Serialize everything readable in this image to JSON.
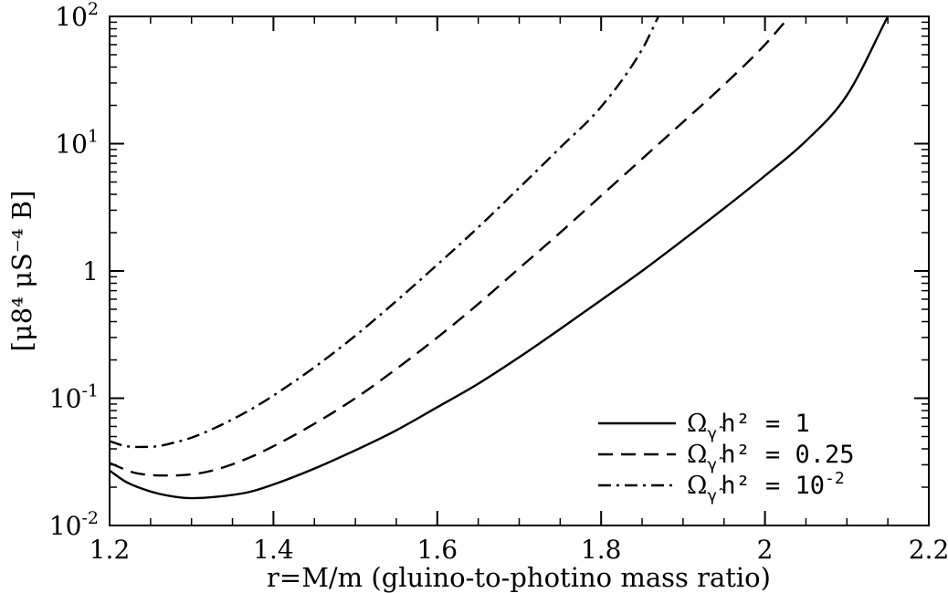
{
  "chart_data": {
    "type": "line",
    "xlabel": "r=M/m (gluino-to-photino mass ratio)",
    "ylabel": "[μ8⁴ μS⁻⁴ B]",
    "xlim": [
      1.2,
      2.2
    ],
    "ylim": [
      0.01,
      100
    ],
    "yscale": "log",
    "grid": false,
    "legend_position": "bottom-right",
    "x_ticks": [
      {
        "value": 1.2,
        "label": "1.2"
      },
      {
        "value": 1.4,
        "label": "1.4"
      },
      {
        "value": 1.6,
        "label": "1.6"
      },
      {
        "value": 1.8,
        "label": "1.8"
      },
      {
        "value": 2.0,
        "label": "2"
      },
      {
        "value": 2.2,
        "label": "2.2"
      }
    ],
    "y_ticks": [
      {
        "value": 0.01,
        "base": "10",
        "exp": "-2"
      },
      {
        "value": 0.1,
        "base": "10",
        "exp": "-1"
      },
      {
        "value": 1,
        "base": "1",
        "exp": ""
      },
      {
        "value": 10,
        "base": "10",
        "exp": "1"
      },
      {
        "value": 100,
        "base": "10",
        "exp": "2"
      }
    ],
    "series": [
      {
        "name": "Ω h² = 1",
        "legend_prefix": "Ω",
        "legend_sub": "γ̃",
        "legend_rest": "h² = 1",
        "dash": "solid",
        "x": [
          1.2,
          1.22,
          1.25,
          1.28,
          1.3,
          1.33,
          1.37,
          1.4,
          1.45,
          1.5,
          1.55,
          1.6,
          1.65,
          1.7,
          1.75,
          1.8,
          1.85,
          1.9,
          1.95,
          2.0,
          2.05,
          2.1,
          2.15
        ],
        "y": [
          0.027,
          0.022,
          0.0185,
          0.0168,
          0.0164,
          0.0168,
          0.0183,
          0.021,
          0.028,
          0.039,
          0.056,
          0.085,
          0.13,
          0.21,
          0.35,
          0.59,
          1.0,
          1.75,
          3.1,
          5.6,
          10.5,
          24,
          100
        ]
      },
      {
        "name": "Ω h² = 0.25",
        "legend_prefix": "Ω",
        "legend_sub": "γ̃",
        "legend_rest": "h² = 0.25",
        "dash": "dashed",
        "x": [
          1.2,
          1.23,
          1.27,
          1.3,
          1.33,
          1.37,
          1.4,
          1.45,
          1.5,
          1.55,
          1.6,
          1.65,
          1.7,
          1.75,
          1.8,
          1.85,
          1.9,
          1.95,
          2.0,
          2.03
        ],
        "y": [
          0.031,
          0.026,
          0.0247,
          0.0252,
          0.0275,
          0.034,
          0.042,
          0.063,
          0.1,
          0.17,
          0.3,
          0.55,
          1.05,
          2.0,
          3.9,
          7.6,
          14.8,
          29,
          60,
          100
        ]
      },
      {
        "name": "Ω h² = 10⁻²",
        "legend_prefix": "Ω",
        "legend_sub": "γ̃",
        "legend_rest": "h² = 10",
        "legend_exp": "-2",
        "dash": "dashdot",
        "x": [
          1.2,
          1.22,
          1.25,
          1.28,
          1.3,
          1.33,
          1.37,
          1.4,
          1.45,
          1.5,
          1.55,
          1.6,
          1.65,
          1.7,
          1.75,
          1.8,
          1.85,
          1.87
        ],
        "y": [
          0.046,
          0.042,
          0.0415,
          0.045,
          0.049,
          0.059,
          0.08,
          0.105,
          0.175,
          0.31,
          0.58,
          1.12,
          2.2,
          4.5,
          9.3,
          19.5,
          55,
          100
        ]
      }
    ]
  }
}
